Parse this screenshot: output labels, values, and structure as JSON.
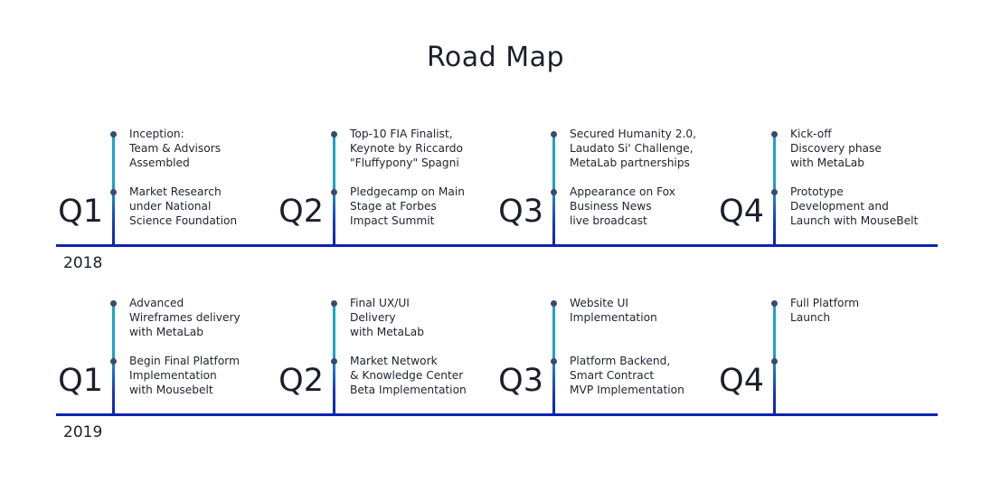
{
  "title": "Road Map",
  "rows": [
    {
      "year": "2018",
      "quarters": [
        {
          "label": "Q1",
          "events": [
            "Inception:\nTeam & Advisors\nAssembled",
            "Market Research\nunder National\nScience Foundation"
          ]
        },
        {
          "label": "Q2",
          "events": [
            "Top-10 FIA Finalist,\nKeynote by Riccardo\n\"Fluffypony\" Spagni",
            "Pledgecamp on Main\nStage at Forbes\nImpact Summit"
          ]
        },
        {
          "label": "Q3",
          "events": [
            "Secured Humanity 2.0,\nLaudato Si' Challenge,\nMetaLab partnerships",
            "Appearance on Fox\nBusiness News\nlive broadcast"
          ]
        },
        {
          "label": "Q4",
          "events": [
            "Kick-off\nDiscovery phase\nwith MetaLab",
            "Prototype\nDevelopment and\nLaunch with MouseBelt"
          ]
        }
      ]
    },
    {
      "year": "2019",
      "quarters": [
        {
          "label": "Q1",
          "events": [
            "Advanced\nWireframes delivery\nwith MetaLab",
            "Begin Final Platform\nImplementation\nwith Mousebelt"
          ]
        },
        {
          "label": "Q2",
          "events": [
            "Final UX/UI\nDelivery\nwith MetaLab",
            "Market Network\n& Knowledge Center\nBeta Implementation"
          ]
        },
        {
          "label": "Q3",
          "events": [
            "Website UI\nImplementation",
            "Platform Backend,\nSmart Contract\nMVP Implementation"
          ]
        },
        {
          "label": "Q4",
          "events": [
            "Full Platform\nLaunch",
            ""
          ]
        }
      ]
    }
  ]
}
